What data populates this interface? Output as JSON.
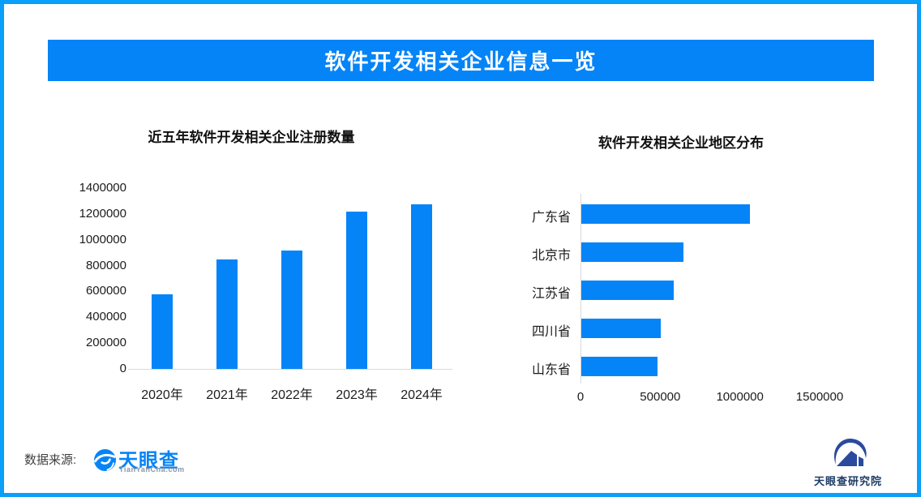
{
  "banner": {
    "title": "软件开发相关企业信息一览"
  },
  "colors": {
    "accent_blue": "#0584f7",
    "frame_border_blue": "#0a9ff9",
    "axis_line_gray": "#d9d9d9",
    "institute_navy": "#2b4a9e"
  },
  "chart_data": [
    {
      "type": "bar",
      "title": "近五年软件开发相关企业注册数量",
      "categories": [
        "2020年",
        "2021年",
        "2022年",
        "2023年",
        "2024年"
      ],
      "values": [
        575000,
        850000,
        915000,
        1220000,
        1275000
      ],
      "ylim": [
        0,
        1400000
      ],
      "ytick_interval": 200000,
      "yticks": [
        "0",
        "200000",
        "400000",
        "600000",
        "800000",
        "1000000",
        "1200000",
        "1400000"
      ],
      "grid": false,
      "legend": false,
      "bar_color": "#0584f7"
    },
    {
      "type": "bar-horizontal",
      "title": "软件开发相关企业地区分布",
      "categories": [
        "广东省",
        "北京市",
        "江苏省",
        "四川省",
        "山东省"
      ],
      "values": [
        1060000,
        640000,
        580000,
        500000,
        480000
      ],
      "xlim": [
        0,
        1500000
      ],
      "xticks": [
        "0",
        "500000",
        "1000000",
        "1500000"
      ],
      "grid": false,
      "legend": false,
      "bar_color": "#0584f7"
    }
  ],
  "footer": {
    "source_label": "数据来源:",
    "tianyancha_name": "天眼查",
    "tianyancha_domain": "TianYanCha.com",
    "institute_name": "天眼查研究院"
  }
}
